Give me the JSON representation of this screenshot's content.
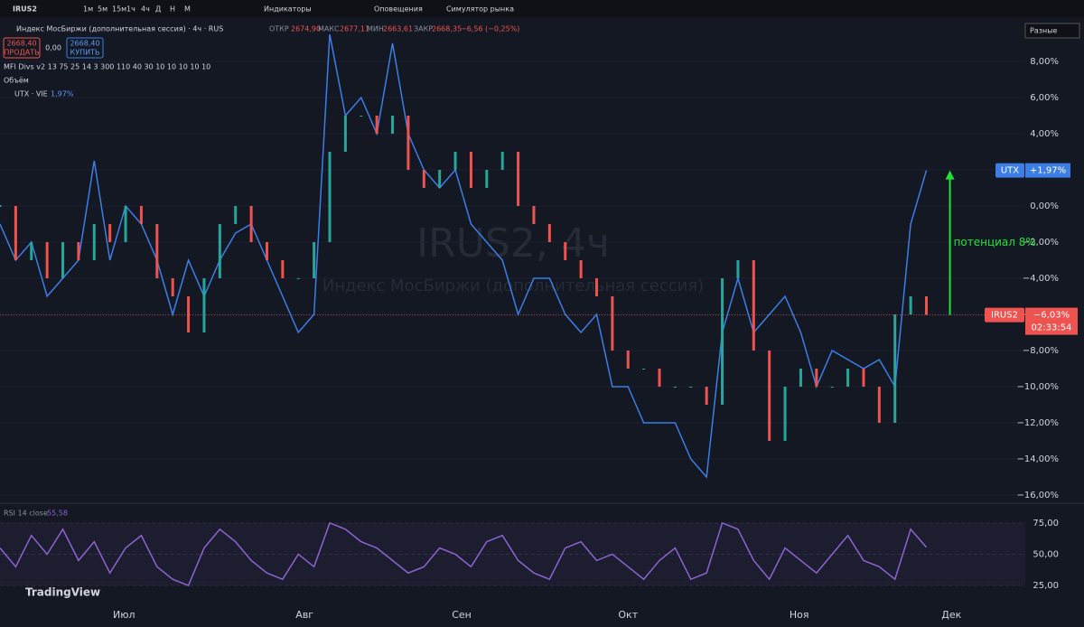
{
  "toolbar": {
    "symbol": "IRUS2",
    "intervals": [
      "1м",
      "5м",
      "15м",
      "1ч",
      "4ч",
      "Д",
      "Н",
      "М"
    ],
    "indicators": "Индикаторы",
    "alerts": "Оповещения",
    "simulator": "Симулятор рынка"
  },
  "legend": {
    "title": "Индекс МосБиржи (дополнительная сессия) · 4ч · RUS",
    "open_label": "ОТКР",
    "open": "2674,90",
    "high_label": "МАКС",
    "high": "2677,11",
    "low_label": "МИН",
    "low": "2663,61",
    "close_label": "ЗАКР",
    "close": "2668,35",
    "change": "−6,56 (−0,25%)",
    "sell_price": "2668,40",
    "sell": "ПРОДАТЬ",
    "spread": "0,00",
    "buy_price": "2668,40",
    "buy": "КУПИТЬ",
    "mfi": "MFI Divs v2 13 75 25 14 3 300 110 40 30 10 10 10 10 10",
    "volume": "Объём",
    "compare": "UTX · VIE",
    "compare_value": "1,97%",
    "scale_mode": "Разные"
  },
  "watermark": {
    "title": "IRUS2, 4ч",
    "subtitle": "Индекс МосБиржи (дополнительная сессия)"
  },
  "logo": "TradingView",
  "chart_data": [
    {
      "type": "line",
      "annotation": "потенциал 8%",
      "ylim": [
        -16.35,
        10.15
      ],
      "xlim": [
        0,
        65.3
      ],
      "yticks": [
        {
          "value": 8,
          "label": "8,00%"
        },
        {
          "value": 6,
          "label": "6,00%"
        },
        {
          "value": 4,
          "label": "4,00%"
        },
        {
          "value": 2,
          "label": "2,00%"
        },
        {
          "value": 0,
          "label": "0,00%"
        },
        {
          "value": -2,
          "label": "−2,00%"
        },
        {
          "value": -4,
          "label": "−4,00%"
        },
        {
          "value": -6,
          "label": "−6,00%"
        },
        {
          "value": -8,
          "label": "−8,00%"
        },
        {
          "value": -10,
          "label": "−10,00%"
        },
        {
          "value": -12,
          "label": "−12,00%"
        },
        {
          "value": -14,
          "label": "−14,00%"
        },
        {
          "value": -16,
          "label": "−16,00%"
        }
      ],
      "xticks": [
        {
          "value": 7.9,
          "label": "Июл"
        },
        {
          "value": 19.4,
          "label": "Авг"
        },
        {
          "value": 29.4,
          "label": "Сен"
        },
        {
          "value": 40,
          "label": "Окт"
        },
        {
          "value": 50.9,
          "label": "Ноя"
        },
        {
          "value": 60.6,
          "label": "Дек"
        }
      ],
      "series": [
        {
          "name": "UTX",
          "color": "#3d7ee6",
          "mark": "line",
          "last_label": "+1,97%",
          "values": [
            -1,
            -3,
            -2,
            -5,
            -4,
            -3,
            2.5,
            -3,
            0,
            -1,
            -3,
            -6,
            -3,
            -5,
            -3,
            -1.5,
            -1,
            -3,
            -5,
            -7,
            -6,
            9.5,
            5,
            6,
            4,
            9,
            4,
            2,
            1,
            2,
            -1,
            -2,
            -3,
            -6,
            -4,
            -4,
            -6,
            -7,
            -6,
            -10,
            -10,
            -12,
            -12,
            -12,
            -14,
            -15,
            -7,
            -4,
            -7,
            -6,
            -5,
            -7,
            -10,
            -8,
            -8.5,
            -9,
            -8.5,
            -10,
            -1,
            1.97
          ]
        },
        {
          "name": "IRUS2",
          "color": "#ef5350",
          "up_color": "#26a69a",
          "mark": "candles",
          "last_label": "−6,03%",
          "countdown": "02:33:54",
          "values": [
            0,
            -3,
            -2,
            -4,
            -2,
            -3,
            -1,
            -2,
            0,
            -1,
            -4,
            -5,
            -7,
            -4,
            -1,
            0,
            -2,
            -3,
            -4,
            -4,
            -2,
            3,
            5,
            5,
            4,
            5,
            2,
            1,
            2,
            3,
            1,
            2,
            3,
            0,
            -1,
            -2,
            -3,
            -4,
            -5,
            -8,
            -9,
            -9,
            -10,
            -10,
            -10,
            -11,
            -4,
            -3,
            -8,
            -13,
            -10,
            -9,
            -10,
            -10,
            -9,
            -10,
            -12,
            -6,
            -5,
            -6.03
          ]
        }
      ]
    },
    {
      "type": "line",
      "title": "RSI 14 close",
      "value_label": "55,58",
      "ylim": [
        16.4,
        88.6
      ],
      "xlim": [
        0,
        65.3
      ],
      "yticks": [
        {
          "value": 75,
          "label": "75,00"
        },
        {
          "value": 50,
          "label": "50,00"
        },
        {
          "value": 25,
          "label": "25,00"
        }
      ],
      "series": [
        {
          "name": "RSI",
          "color": "#8e63d2",
          "values": [
            55,
            40,
            65,
            50,
            70,
            45,
            60,
            35,
            55,
            65,
            40,
            30,
            25,
            55,
            70,
            60,
            45,
            35,
            30,
            50,
            40,
            75,
            70,
            60,
            55,
            45,
            35,
            40,
            55,
            50,
            40,
            60,
            65,
            45,
            35,
            30,
            55,
            60,
            45,
            50,
            40,
            30,
            45,
            55,
            30,
            35,
            75,
            70,
            45,
            30,
            55,
            45,
            35,
            50,
            65,
            45,
            40,
            30,
            70,
            55.58
          ]
        }
      ]
    }
  ]
}
